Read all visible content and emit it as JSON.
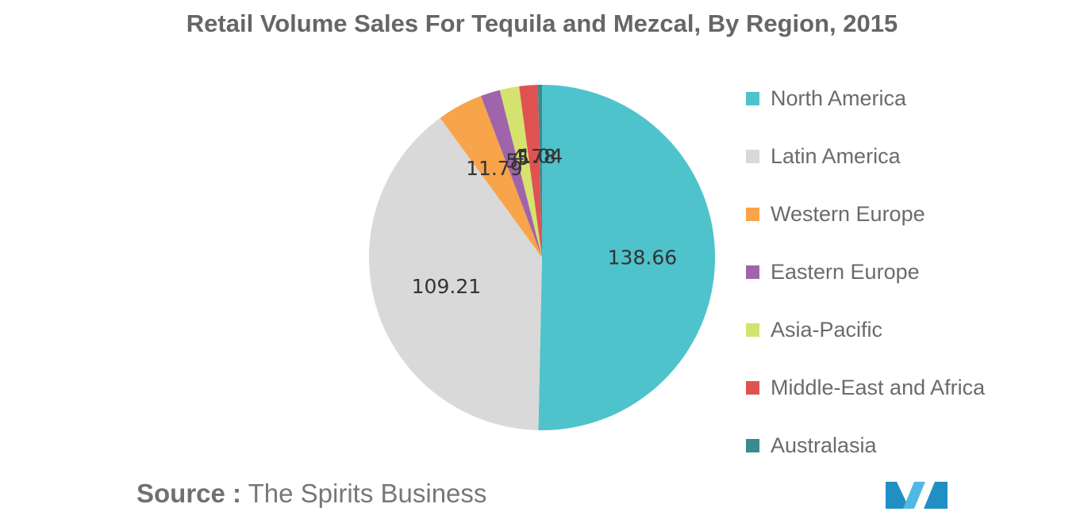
{
  "title": "Retail Volume Sales For Tequila and Mezcal, By Region, 2015",
  "source": {
    "prefix": "Source :",
    "text": "The Spirits Business"
  },
  "logo": {
    "name": "brand-logo",
    "colors": [
      "#1f8fc4",
      "#4fb8e4"
    ]
  },
  "chart_data": {
    "type": "pie",
    "title": "Retail Volume Sales For Tequila and Mezcal, By Region, 2015",
    "legend_position": "right",
    "start_angle_deg": 0,
    "direction": "clockwise",
    "slices": [
      {
        "label": "North America",
        "value": 138.66,
        "display": "138.66",
        "color": "#4fc3cb"
      },
      {
        "label": "Latin America",
        "value": 109.21,
        "display": "109.21",
        "color": "#d9d9d9"
      },
      {
        "label": "Western Europe",
        "value": 11.79,
        "display": "11.79",
        "color": "#f7a44a"
      },
      {
        "label": "Eastern Europe",
        "value": 5.0,
        "display": "5",
        "color": "#a064aa"
      },
      {
        "label": "Asia-Pacific",
        "value": 5.0,
        "display": "5",
        "color": "#d4e36e"
      },
      {
        "label": "Middle-East and Africa",
        "value": 4.78,
        "display": "4.78",
        "color": "#e05252"
      },
      {
        "label": "Australasia",
        "value": 1.04,
        "display": "1.04",
        "color": "#3a8a8f"
      }
    ]
  }
}
